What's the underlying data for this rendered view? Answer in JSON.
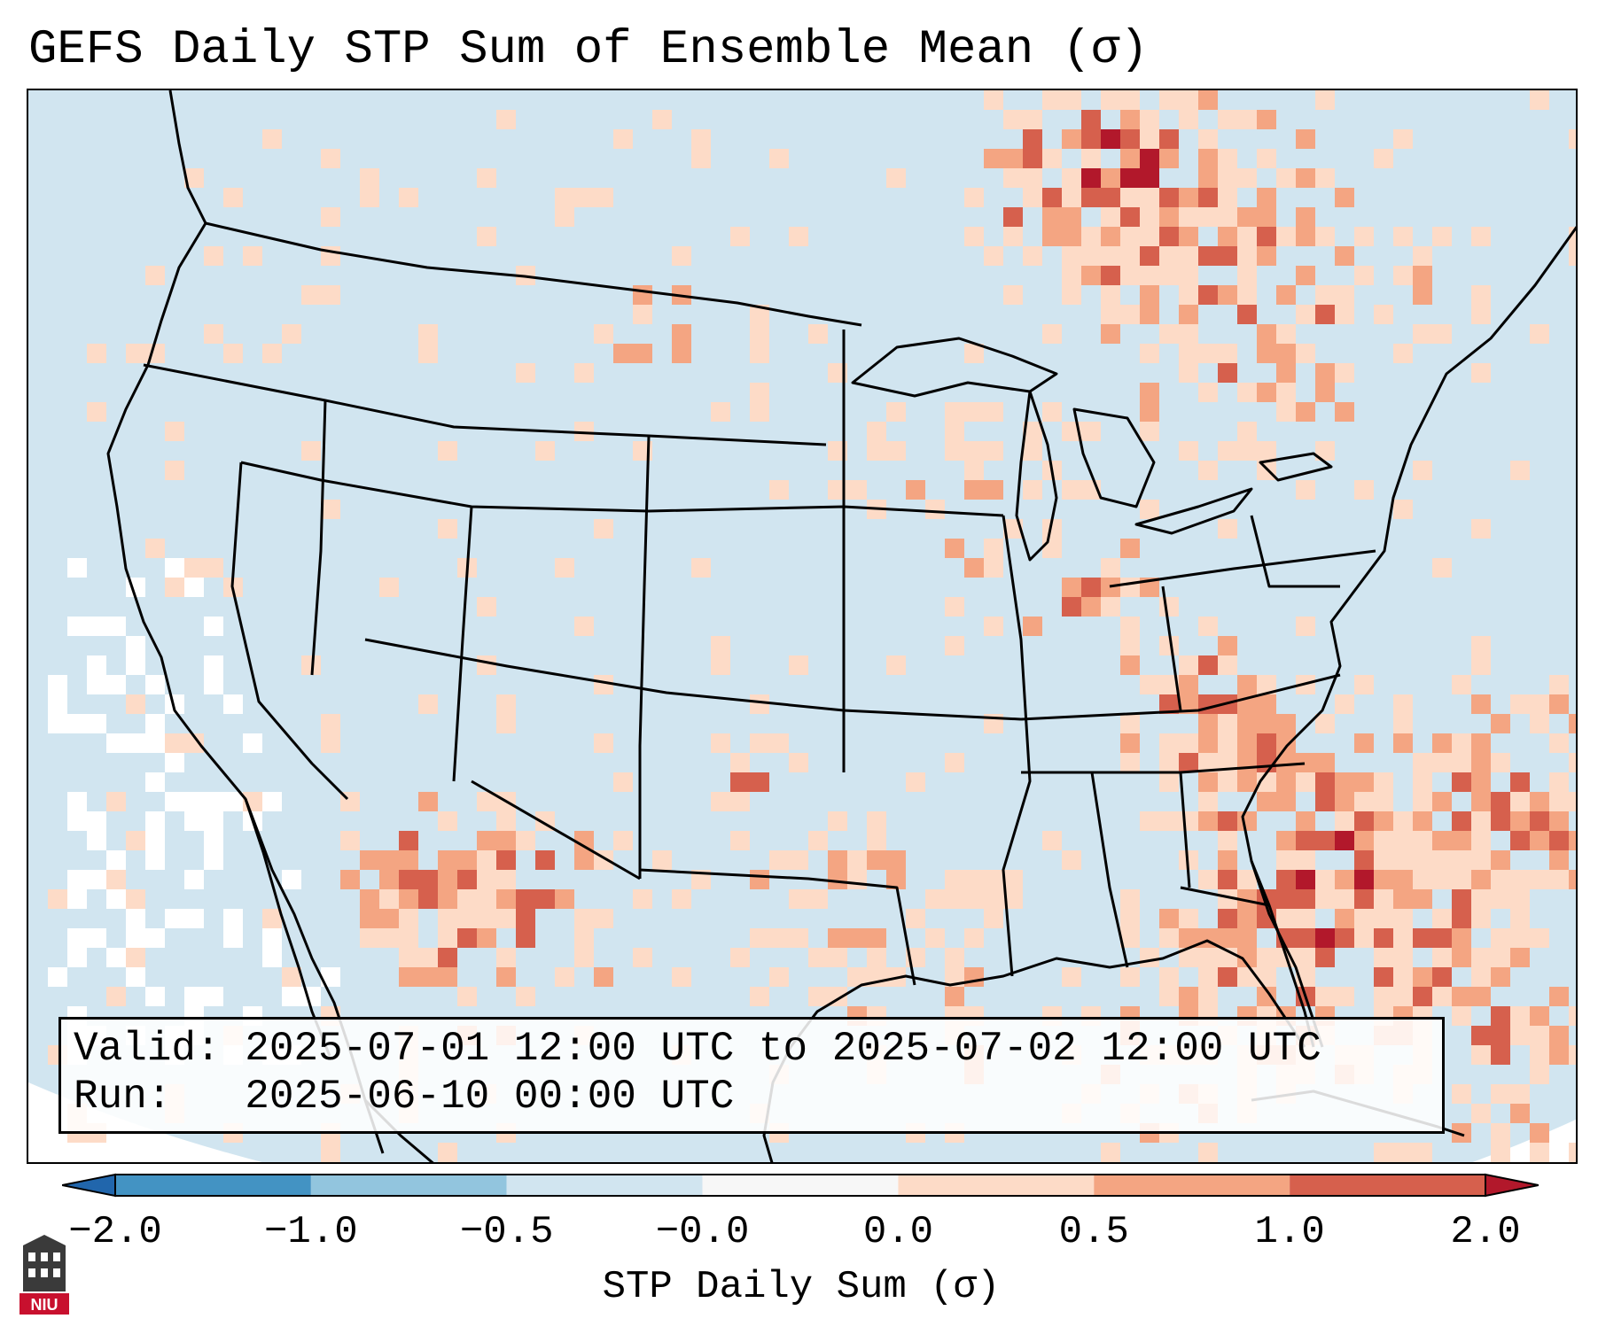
{
  "title": "GEFS Daily STP Sum of Ensemble Mean (σ)",
  "map": {
    "region": "Continental United States and surrounding areas",
    "background_color": "#d1e5f0",
    "ocean_edge_color": "#ffffff"
  },
  "info_box": {
    "valid_line": "Valid: 2025-07-01 12:00 UTC to 2025-07-02 12:00 UTC",
    "run_line": "Run:   2025-06-10 00:00 UTC"
  },
  "colorbar": {
    "label": "STP Daily Sum (σ)",
    "bins": [
      {
        "from": -2.0,
        "to": -1.0,
        "color": "#4393c3"
      },
      {
        "from": -1.0,
        "to": -0.5,
        "color": "#92c5de"
      },
      {
        "from": -0.5,
        "to": -0.0,
        "color": "#d1e5f0"
      },
      {
        "from": -0.0,
        "to": 0.0,
        "color": "#f7f7f7"
      },
      {
        "from": 0.0,
        "to": 0.5,
        "color": "#fddbc7"
      },
      {
        "from": 0.5,
        "to": 1.0,
        "color": "#f4a582"
      },
      {
        "from": 1.0,
        "to": 2.0,
        "color": "#d6604d"
      }
    ],
    "under_color": "#2166ac",
    "over_color": "#b2182b",
    "ticks": [
      "−2.0",
      "−1.0",
      "−0.5",
      "−0.0",
      "0.0",
      "0.5",
      "1.0",
      "2.0"
    ]
  },
  "logo": {
    "text": "NIU",
    "icon": "niu-tower-logo"
  }
}
